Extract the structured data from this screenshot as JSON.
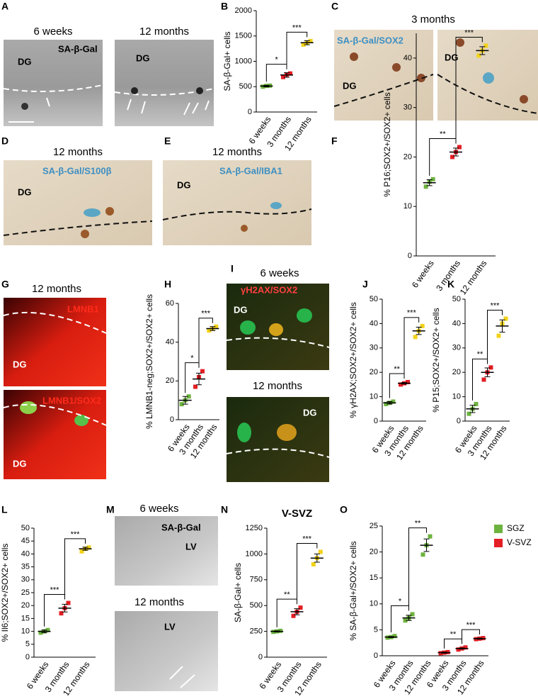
{
  "images": {
    "A": {
      "letter": "A",
      "titles": [
        "6 weeks",
        "12 months"
      ],
      "labels": [
        "DG",
        "SA-β-Gal",
        "DG"
      ]
    },
    "C": {
      "letter": "C",
      "title": "3 months",
      "labels": [
        "SA-β-Gal/SOX2",
        "DG",
        "DG"
      ]
    },
    "D": {
      "letter": "D",
      "title": "12 months",
      "labels": [
        "SA-β-Gal/S100β",
        "DG"
      ]
    },
    "E": {
      "letter": "E",
      "title": "12 months",
      "labels": [
        "SA-β-Gal/IBA1",
        "DG"
      ]
    },
    "G": {
      "letter": "G",
      "title": "12 months",
      "labels": [
        "LMNB1",
        "DG",
        "LMNB1/SOX2",
        "DG"
      ]
    },
    "I": {
      "letter": "I",
      "titles": [
        "6 weeks",
        "12 months"
      ],
      "labels": [
        "γH2AX/SOX2",
        "DG",
        "DG"
      ]
    },
    "M": {
      "letter": "M",
      "titles": [
        "6 weeks",
        "12 months"
      ],
      "labels": [
        "SA-β-Gal",
        "LV",
        "LV"
      ]
    }
  },
  "chart_data": [
    {
      "type": "dot",
      "panel": "B",
      "y_label": "SA-β-Gal+ cells",
      "categories": [
        "6 weeks",
        "3 months",
        "12 months"
      ],
      "colors": [
        "#6db33f",
        "#e31e24",
        "#f2d21b"
      ],
      "values": [
        512,
        730,
        1367
      ],
      "errors": [
        15,
        45,
        40
      ],
      "points": [
        [
          500,
          515,
          520
        ],
        [
          690,
          740,
          760
        ],
        [
          1330,
          1370,
          1400
        ]
      ],
      "ylim": [
        0,
        2000
      ],
      "yticks": [
        0,
        500,
        1000,
        1500,
        2000
      ],
      "significance": [
        {
          "from": 0,
          "to": 1,
          "label": "*"
        },
        {
          "from": 1,
          "to": 2,
          "label": "***"
        }
      ]
    },
    {
      "type": "dot",
      "panel": "F",
      "y_label": "% P16;SOX2+/SOX2+ cells",
      "categories": [
        "6 weeks",
        "3 months",
        "12 months"
      ],
      "colors": [
        "#6db33f",
        "#e31e24",
        "#f2d21b"
      ],
      "values": [
        14.8,
        21,
        41.5
      ],
      "errors": [
        0.6,
        0.8,
        0.8
      ],
      "points": [
        [
          14,
          15,
          15.5
        ],
        [
          20,
          21,
          22
        ],
        [
          40.5,
          41.5,
          42.5
        ]
      ],
      "ylim": [
        0,
        45
      ],
      "yticks": [
        0,
        10,
        20,
        30,
        40
      ],
      "significance": [
        {
          "from": 0,
          "to": 1,
          "label": "**"
        },
        {
          "from": 1,
          "to": 2,
          "label": "***"
        }
      ]
    },
    {
      "type": "dot",
      "panel": "H",
      "y_label": "% LMNB1-neg;SOX2+/SOX2+ cells",
      "categories": [
        "6 weeks",
        "3 months",
        "12 months"
      ],
      "colors": [
        "#6db33f",
        "#e31e24",
        "#f2d21b"
      ],
      "values": [
        10,
        21,
        47
      ],
      "errors": [
        2,
        3,
        1
      ],
      "points": [
        [
          8,
          10,
          12
        ],
        [
          17,
          22,
          25
        ],
        [
          46,
          47,
          48
        ]
      ],
      "ylim": [
        0,
        60
      ],
      "yticks": [
        0,
        20,
        40,
        60
      ],
      "significance": [
        {
          "from": 0,
          "to": 1,
          "label": "*"
        },
        {
          "from": 1,
          "to": 2,
          "label": "***"
        }
      ]
    },
    {
      "type": "dot",
      "panel": "J",
      "y_label": "% γH2AX;SOX2+/SOX2+ cells",
      "categories": [
        "6 weeks",
        "3 months",
        "12 months"
      ],
      "colors": [
        "#6db33f",
        "#e31e24",
        "#f2d21b"
      ],
      "values": [
        7.5,
        15.5,
        37
      ],
      "errors": [
        0.5,
        0.3,
        1.5
      ],
      "points": [
        [
          7,
          7.5,
          8
        ],
        [
          15,
          15.5,
          16
        ],
        [
          34.5,
          37,
          39
        ]
      ],
      "ylim": [
        0,
        50
      ],
      "yticks": [
        0,
        10,
        20,
        30,
        40,
        50
      ],
      "significance": [
        {
          "from": 0,
          "to": 1,
          "label": "**"
        },
        {
          "from": 1,
          "to": 2,
          "label": "***"
        }
      ]
    },
    {
      "type": "dot",
      "panel": "K",
      "y_label": "% P15;SOX2+/SOX2+ cells",
      "categories": [
        "6 weeks",
        "3 months",
        "12 months"
      ],
      "colors": [
        "#6db33f",
        "#e31e24",
        "#f2d21b"
      ],
      "values": [
        5,
        20,
        39
      ],
      "errors": [
        1.5,
        1.8,
        2.5
      ],
      "points": [
        [
          3,
          5,
          7
        ],
        [
          17,
          20,
          22
        ],
        [
          35,
          40,
          42
        ]
      ],
      "ylim": [
        0,
        50
      ],
      "yticks": [
        0,
        10,
        20,
        30,
        40,
        50
      ],
      "significance": [
        {
          "from": 0,
          "to": 1,
          "label": "**"
        },
        {
          "from": 1,
          "to": 2,
          "label": "***"
        }
      ]
    },
    {
      "type": "dot",
      "panel": "L",
      "y_label": "% Il6;SOX2+/SOX2+ cells",
      "categories": [
        "6 weeks",
        "3 months",
        "12 months"
      ],
      "colors": [
        "#6db33f",
        "#e31e24",
        "#f2d21b"
      ],
      "values": [
        10,
        19,
        42
      ],
      "errors": [
        0.5,
        1.5,
        0.6
      ],
      "points": [
        [
          9.5,
          10,
          10.5
        ],
        [
          17,
          19,
          21
        ],
        [
          41,
          42,
          42.5
        ]
      ],
      "ylim": [
        0,
        50
      ],
      "yticks": [
        0,
        5,
        10,
        15,
        20,
        25,
        30,
        35,
        40,
        45,
        50
      ],
      "significance": [
        {
          "from": 0,
          "to": 1,
          "label": "***"
        },
        {
          "from": 1,
          "to": 2,
          "label": "***"
        }
      ]
    },
    {
      "type": "dot",
      "panel": "N",
      "title": "V-SVZ",
      "y_label": "SA-β-Gal+ cells",
      "categories": [
        "6 weeks",
        "3 months",
        "12 months"
      ],
      "colors": [
        "#6db33f",
        "#e31e24",
        "#f2d21b"
      ],
      "values": [
        250,
        440,
        960
      ],
      "errors": [
        5,
        30,
        40
      ],
      "points": [
        [
          245,
          250,
          255
        ],
        [
          400,
          440,
          480
        ],
        [
          900,
          960,
          1020
        ]
      ],
      "ylim": [
        0,
        1250
      ],
      "yticks": [
        0,
        250,
        500,
        750,
        1000,
        1250
      ],
      "significance": [
        {
          "from": 0,
          "to": 1,
          "label": "**"
        },
        {
          "from": 1,
          "to": 2,
          "label": "***"
        }
      ]
    },
    {
      "type": "dot",
      "panel": "O",
      "y_label": "% SA-β-Gal+/SOX2+ cells",
      "categories": [
        "6 weeks",
        "3 months",
        "12 months",
        "6 weeks",
        "3 months",
        "12 months"
      ],
      "series": [
        {
          "name": "SGZ",
          "color": "#6db33f",
          "values": [
            3.6,
            7.3,
            21.3,
            null,
            null,
            null
          ],
          "errors": [
            0.1,
            0.5,
            1.2,
            null,
            null,
            null
          ],
          "points": [
            [
              3.5,
              3.6,
              3.8
            ],
            [
              6.8,
              7.3,
              8
            ],
            [
              19.5,
              21.3,
              23
            ],
            null,
            null,
            null
          ]
        },
        {
          "name": "V-SVZ",
          "color": "#e31e24",
          "values": [
            null,
            null,
            null,
            0.6,
            1.4,
            3.3
          ],
          "errors": [
            null,
            null,
            null,
            0.1,
            0.1,
            0.1
          ],
          "points": [
            null,
            null,
            null,
            [
              0.5,
              0.6,
              0.7
            ],
            [
              1.2,
              1.4,
              1.6
            ],
            [
              3.2,
              3.3,
              3.4
            ]
          ]
        }
      ],
      "legend": "upper right",
      "ylim": [
        0,
        25
      ],
      "yticks": [
        0,
        5,
        10,
        15,
        20,
        25
      ],
      "significance": [
        {
          "from": 0,
          "to": 1,
          "label": "*"
        },
        {
          "from": 1,
          "to": 2,
          "label": "**"
        },
        {
          "from": 3,
          "to": 4,
          "label": "**"
        },
        {
          "from": 4,
          "to": 5,
          "label": "***"
        }
      ]
    }
  ]
}
